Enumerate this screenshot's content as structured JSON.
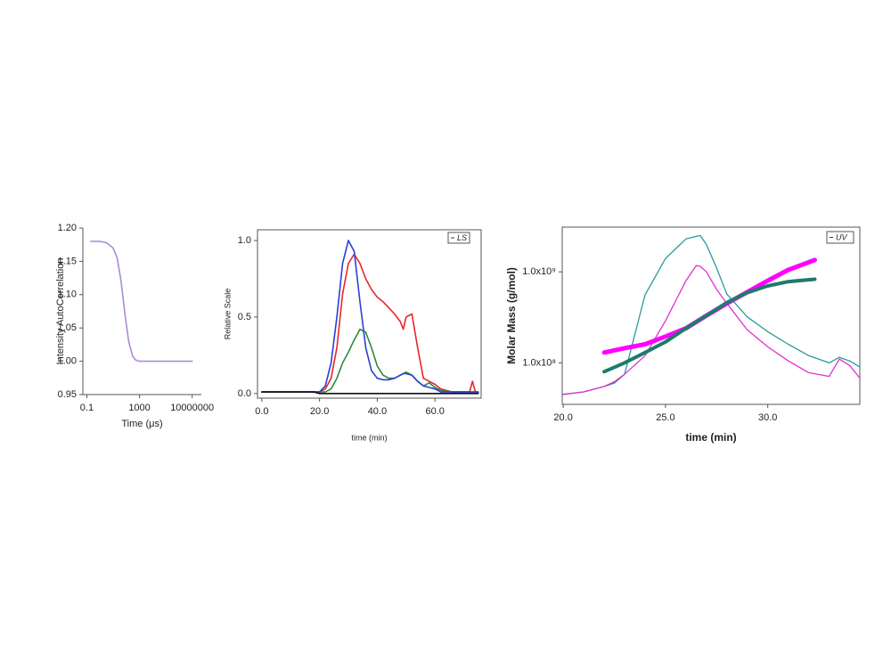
{
  "chart_data": [
    {
      "type": "line",
      "xlabel": "Time (μs)",
      "ylabel": "Intensity AutoCorrelation",
      "xscale": "log",
      "xlim": [
        0.05,
        50000000
      ],
      "xticks": [
        0.1,
        1000,
        10000000
      ],
      "ylim": [
        0.95,
        1.2
      ],
      "yticks": [
        0.95,
        {
          "value": 1.0,
          "label": "1.00"
        },
        1.05,
        {
          "value": 1.1,
          "label": "1.10"
        },
        1.15,
        {
          "value": 1.2,
          "label": "1.20"
        }
      ],
      "series": [
        {
          "color": "#a98bd6",
          "x": [
            0.2,
            1,
            3,
            10,
            20,
            40,
            80,
            150,
            300,
            500,
            1000,
            10000,
            100000,
            1000000,
            10000000
          ],
          "values": [
            1.18,
            1.18,
            1.178,
            1.17,
            1.155,
            1.12,
            1.07,
            1.03,
            1.008,
            1.002,
            1.0,
            1.0,
            1.0,
            1.0,
            1.0
          ]
        }
      ]
    },
    {
      "type": "line",
      "xlabel": "time (min)",
      "ylabel": "Relative Scale",
      "legend_label": "LS",
      "xlim": [
        -1.5,
        76
      ],
      "xticks": [
        {
          "value": 0,
          "label": "0.0"
        },
        {
          "value": 20,
          "label": "20.0"
        },
        {
          "value": 40,
          "label": "40.0"
        },
        {
          "value": 60,
          "label": "60.0"
        }
      ],
      "ylim": [
        -0.03,
        1.07
      ],
      "yticks": [
        {
          "value": 0,
          "label": "0.0"
        },
        {
          "value": 0.5,
          "label": "0.5"
        },
        {
          "value": 1,
          "label": "1.0"
        }
      ],
      "x": [
        0,
        10,
        18,
        20,
        22,
        24,
        26,
        28,
        30,
        32,
        34,
        36,
        38,
        40,
        42,
        44,
        46,
        48,
        49,
        50,
        52,
        54,
        56,
        58,
        60,
        62,
        66,
        70,
        72,
        73,
        74,
        75
      ],
      "series": [
        {
          "color": "#e8262a",
          "values": [
            0.01,
            0.01,
            0.01,
            0.01,
            0.03,
            0.1,
            0.3,
            0.65,
            0.85,
            0.91,
            0.85,
            0.75,
            0.68,
            0.63,
            0.6,
            0.56,
            0.52,
            0.47,
            0.42,
            0.5,
            0.52,
            0.3,
            0.1,
            0.08,
            0.06,
            0.03,
            0.01,
            0.01,
            0.01,
            0.08,
            0.01,
            0.01
          ]
        },
        {
          "color": "#2b8a3e",
          "values": [
            0.01,
            0.01,
            0.01,
            0.01,
            0.01,
            0.03,
            0.1,
            0.2,
            0.27,
            0.35,
            0.42,
            0.4,
            0.3,
            0.18,
            0.12,
            0.1,
            0.1,
            0.12,
            0.13,
            0.14,
            0.12,
            0.08,
            0.05,
            0.07,
            0.04,
            0.02,
            0.01,
            0.01,
            0.01,
            0.01,
            0.01,
            0.01
          ]
        },
        {
          "color": "#2a3fd6",
          "values": [
            0.01,
            0.01,
            0.01,
            0.01,
            0.05,
            0.2,
            0.5,
            0.85,
            1.0,
            0.93,
            0.6,
            0.3,
            0.15,
            0.1,
            0.09,
            0.09,
            0.1,
            0.12,
            0.13,
            0.13,
            0.12,
            0.08,
            0.05,
            0.04,
            0.03,
            0.01,
            0.01,
            0.01,
            0.01,
            0.01,
            0.01,
            0.01
          ]
        },
        {
          "color": "#111111",
          "values": [
            0.01,
            0.01,
            0.01,
            0.0,
            0.0,
            0.0,
            0.0,
            0.0,
            0.0,
            0.0,
            0.0,
            0.0,
            0.0,
            0.0,
            0.0,
            0.0,
            0.0,
            0.0,
            0.0,
            0.0,
            0.0,
            0.0,
            0.0,
            0.0,
            0.0,
            0.0,
            0.0,
            0.0,
            0.0,
            0.0,
            0.0,
            0.0
          ]
        }
      ]
    },
    {
      "type": "line",
      "xlabel": "time (min)",
      "ylabel": "Molar Mass (g/mol)",
      "legend_label": "UV",
      "yscale": "log",
      "xlim": [
        19.95,
        34.5
      ],
      "xticks": [
        {
          "value": 20,
          "label": "20.0"
        },
        {
          "value": 25,
          "label": "25.0"
        },
        {
          "value": 30,
          "label": "30.0"
        }
      ],
      "ylim": [
        35000000,
        3100000000
      ],
      "yticks": [
        {
          "value": 100000000,
          "label": "1.0x10⁸"
        },
        {
          "value": 1000000000,
          "label": "1.0x10⁹"
        }
      ],
      "series": [
        {
          "color": "#2a9a9a",
          "x": [
            20,
            21,
            22,
            22.5,
            23,
            24,
            25,
            26,
            26.5,
            26.7,
            27,
            27.5,
            28,
            29,
            30,
            31,
            32,
            33,
            33.5,
            34,
            34.5
          ],
          "values": [
            45000000,
            48000000,
            55000000,
            60000000,
            75000000,
            560000000,
            1400000000,
            2300000000,
            2450000000,
            2500000000,
            2000000000,
            1100000000,
            570000000,
            320000000,
            220000000,
            160000000,
            120000000,
            100000000,
            115000000,
            105000000,
            90000000
          ]
        },
        {
          "color": "#e030d0",
          "x": [
            20,
            21,
            22,
            22.5,
            23,
            24,
            25,
            26,
            26.5,
            26.7,
            27,
            27.5,
            28,
            29,
            30,
            31,
            32,
            33,
            33.5,
            34,
            34.5
          ],
          "values": [
            45000000,
            48000000,
            55000000,
            62000000,
            75000000,
            120000000,
            290000000,
            800000000,
            1170000000,
            1150000000,
            1000000000,
            640000000,
            450000000,
            230000000,
            150000000,
            105000000,
            78000000,
            71000000,
            110000000,
            94000000,
            68000000
          ]
        },
        {
          "color": "#ff00ff",
          "x": [
            22,
            23,
            24,
            25,
            26,
            27,
            28,
            29,
            30,
            31,
            32.3
          ],
          "values": [
            130000000,
            145000000,
            160000000,
            195000000,
            240000000,
            330000000,
            450000000,
            600000000,
            800000000,
            1050000000,
            1350000000
          ]
        },
        {
          "color": "#1f7a6e",
          "x": [
            22,
            23,
            24,
            25,
            26,
            27,
            28,
            29,
            30,
            31,
            32.3
          ],
          "values": [
            80000000,
            100000000,
            130000000,
            170000000,
            240000000,
            330000000,
            460000000,
            590000000,
            700000000,
            780000000,
            830000000
          ]
        }
      ]
    }
  ]
}
